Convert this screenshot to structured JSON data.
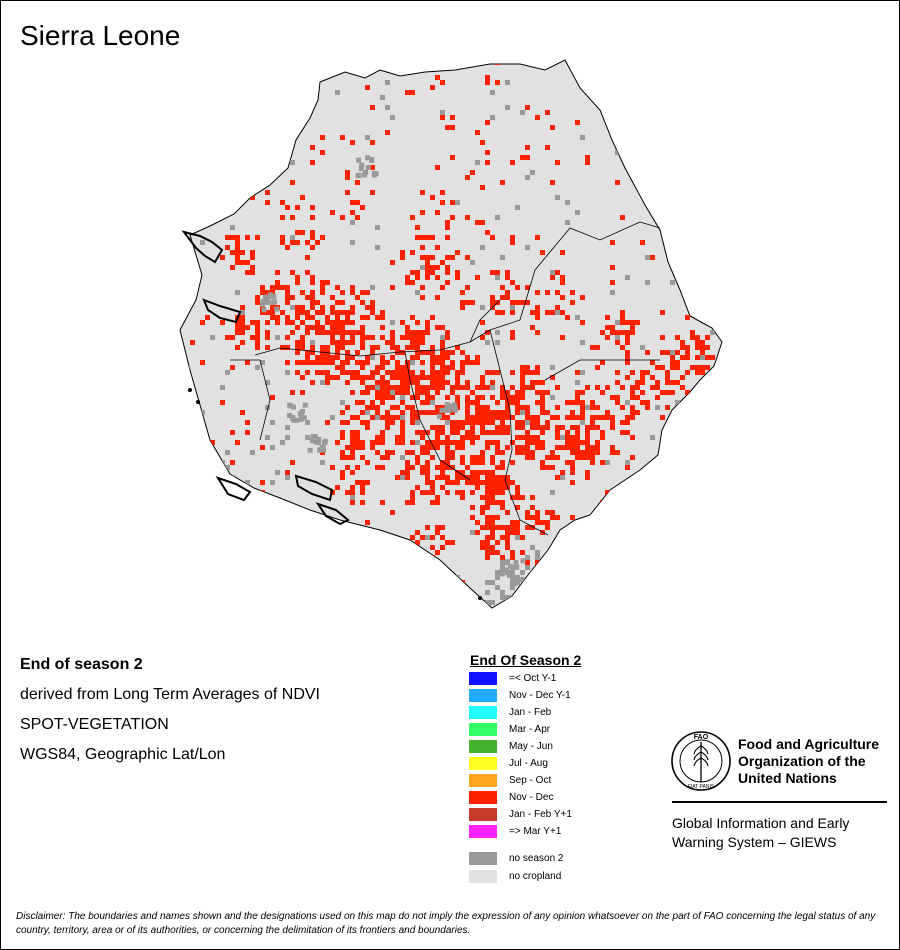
{
  "map": {
    "title": "Sierra Leone",
    "colors": {
      "land": "#e1e1e1",
      "border": "#000000",
      "nov_dec": "#ff2200",
      "no_season": "#9a9a9a",
      "water": "#000000"
    }
  },
  "info": {
    "line1": "End of season 2",
    "line2": "derived from Long Term Averages of NDVI",
    "line3": "SPOT-VEGETATION",
    "line4": "WGS84, Geographic Lat/Lon"
  },
  "legend": {
    "title": "End Of Season 2",
    "items": [
      {
        "label": "=< Oct Y-1",
        "color": "#1111ff"
      },
      {
        "label": "Nov - Dec Y-1",
        "color": "#22aaff"
      },
      {
        "label": "Jan - Feb",
        "color": "#22ffff"
      },
      {
        "label": "Mar - Apr",
        "color": "#33ff66"
      },
      {
        "label": "May - Jun",
        "color": "#44b22c"
      },
      {
        "label": "Jul - Aug",
        "color": "#ffff22"
      },
      {
        "label": "Sep - Oct",
        "color": "#ffa520"
      },
      {
        "label": "Nov - Dec",
        "color": "#ff2200"
      },
      {
        "label": "Jan - Feb Y+1",
        "color": "#c83a2a"
      },
      {
        "label": "=> Mar Y+1",
        "color": "#ff22ff"
      },
      {
        "label": "no season 2",
        "color": "#9a9a9a"
      },
      {
        "label": "no cropland",
        "color": "#e1e1e1"
      }
    ]
  },
  "org": {
    "logo_letters": "FAO",
    "logo_motto": "FIAT PANIS",
    "name": "Food and Agriculture Organization of the United Nations",
    "program": "Global Information and Early Warning System – GIEWS"
  },
  "disclaimer": "Disclaimer: The boundaries and names shown and the designations used on this map do not imply the expression of any opinion whatsoever on the part of FAO concerning the legal status of any country, territory, area or of its authorities, or concerning the delimitation of its frontiers and boundaries."
}
